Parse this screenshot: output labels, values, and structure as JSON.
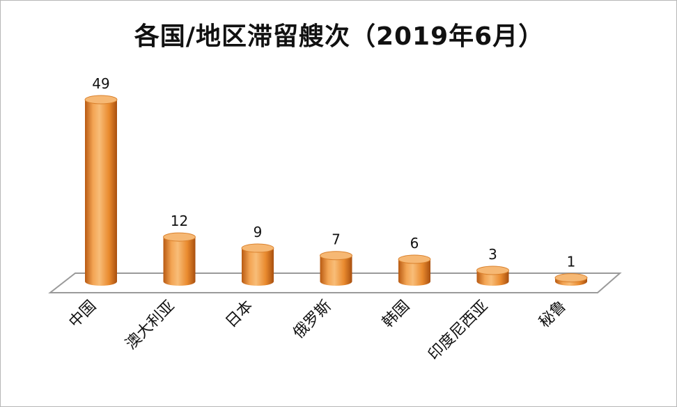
{
  "chart_data": {
    "type": "bar",
    "title": "各国/地区滞留艘次（2019年6月）",
    "categories": [
      "中国",
      "澳大利亚",
      "日本",
      "俄罗斯",
      "韩国",
      "印度尼西亚",
      "秘鲁"
    ],
    "values": [
      49,
      12,
      9,
      7,
      6,
      3,
      1
    ],
    "xlabel": "",
    "ylabel": "",
    "ylim": [
      0,
      49
    ],
    "grid": false,
    "legend": "none",
    "bar_style": "3d-cylinder",
    "colors": {
      "bar": "#f0a050",
      "bar_dark": "#b85a12",
      "bar_top": "#f6b874",
      "floor_stroke": "#9a9a9a"
    }
  }
}
